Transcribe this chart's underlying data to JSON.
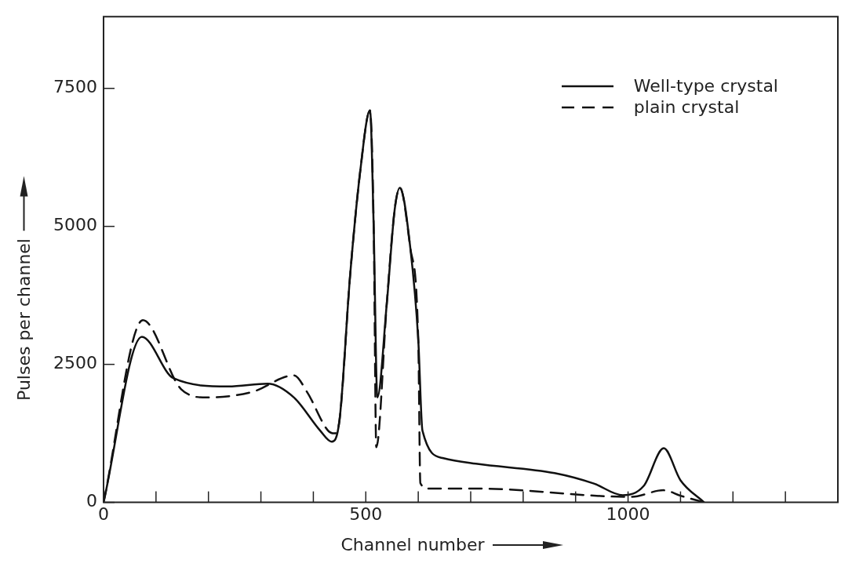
{
  "chart_data": {
    "type": "line",
    "xlabel": "Channel number",
    "ylabel": "Pulses per channel",
    "xlim": [
      0,
      1400
    ],
    "ylim": [
      0,
      8800
    ],
    "xticks": [
      0,
      {
        "value": 100,
        "label": null
      },
      {
        "value": 200,
        "label": null
      },
      {
        "value": 300,
        "label": null
      },
      {
        "value": 400,
        "label": null
      },
      500,
      {
        "value": 600,
        "label": null
      },
      {
        "value": 700,
        "label": null
      },
      {
        "value": 800,
        "label": null
      },
      {
        "value": 900,
        "label": null
      },
      1000,
      {
        "value": 1100,
        "label": null
      },
      {
        "value": 1200,
        "label": null
      },
      {
        "value": 1300,
        "label": null
      }
    ],
    "yticks": [
      0,
      2500,
      5000,
      7500
    ],
    "grid": false,
    "legend": "top right",
    "marker": "none",
    "series": [
      {
        "name": "Well-type crystal",
        "color": "#111111",
        "line_style": "solid",
        "x": [
          0,
          73,
          133,
          238,
          313,
          363,
          413,
          435,
          450,
          470,
          490,
          508,
          515,
          522,
          540,
          555,
          565,
          585,
          600,
          608,
          648,
          710,
          860,
          935,
          990,
          1030,
          1068,
          1100,
          1145
        ],
        "values": [
          0,
          3000,
          2250,
          2100,
          2150,
          1900,
          1300,
          1100,
          1500,
          4100,
          6050,
          7100,
          5000,
          1900,
          3600,
          5300,
          5700,
          4600,
          2950,
          1300,
          800,
          700,
          530,
          340,
          130,
          300,
          980,
          400,
          0
        ]
      },
      {
        "name": "plain crystal",
        "color": "#111111",
        "line_style": "dashed",
        "x": [
          0,
          75,
          148,
          197,
          283,
          363,
          388,
          428,
          440,
          450,
          470,
          490,
          508,
          515,
          520,
          540,
          555,
          565,
          585,
          600,
          604,
          620,
          710,
          1005,
          1068,
          1100,
          1145
        ],
        "values": [
          0,
          3300,
          2050,
          1900,
          2000,
          2300,
          2000,
          1300,
          1250,
          1500,
          4100,
          6050,
          7100,
          5000,
          1000,
          3600,
          5300,
          5700,
          4600,
          2950,
          350,
          250,
          250,
          100,
          220,
          120,
          0
        ]
      }
    ]
  }
}
